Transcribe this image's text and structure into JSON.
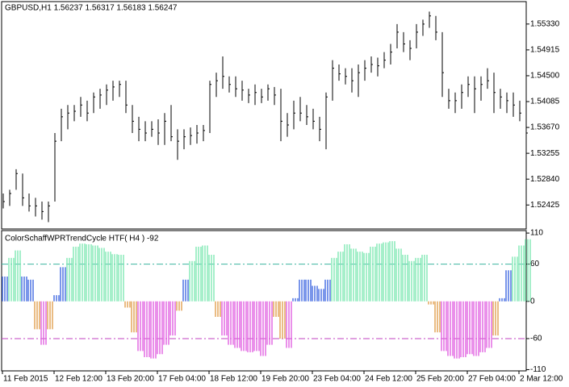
{
  "chart_data": [
    {
      "type": "ohlc",
      "title": "GBPUSD,H1  1.56237 1.56317 1.56183 1.56247",
      "color": "#000000",
      "x": [
        0,
        4,
        8,
        12,
        16,
        20,
        24,
        28,
        32,
        36,
        40,
        44,
        48,
        52,
        56,
        60,
        64,
        68,
        72,
        76,
        80,
        84,
        88,
        92,
        96,
        100,
        104,
        108,
        112,
        116,
        120,
        124,
        128,
        132,
        136,
        140,
        144,
        148,
        152,
        156,
        160,
        164,
        168,
        172,
        176,
        180,
        184,
        188,
        192,
        196,
        200,
        204,
        208,
        212,
        216,
        220,
        224,
        228,
        232,
        236,
        240,
        244,
        248,
        252,
        256,
        260,
        264,
        268,
        272,
        276,
        280,
        284,
        288,
        292,
        296,
        300,
        304,
        308,
        312,
        316,
        320,
        324
      ],
      "high": [
        1.5261,
        1.5267,
        1.53,
        1.5293,
        1.5261,
        1.5254,
        1.5248,
        1.5248,
        1.5358,
        1.5397,
        1.5403,
        1.5403,
        1.5416,
        1.541,
        1.5423,
        1.5429,
        1.5436,
        1.5442,
        1.5442,
        1.5442,
        1.5403,
        1.5384,
        1.5377,
        1.5377,
        1.538,
        1.539,
        1.5403,
        1.5364,
        1.5364,
        1.5367,
        1.5371,
        1.5371,
        1.5442,
        1.5455,
        1.5481,
        1.5449,
        1.5449,
        1.5442,
        1.5429,
        1.5436,
        1.5429,
        1.5436,
        1.5432,
        1.5429,
        1.539,
        1.541,
        1.5416,
        1.5403,
        1.5397,
        1.5384,
        1.5423,
        1.5475,
        1.5468,
        1.5462,
        1.5462,
        1.5468,
        1.5475,
        1.5481,
        1.5479,
        1.5488,
        1.5501,
        1.5533,
        1.552,
        1.5507,
        1.5533,
        1.554,
        1.5553,
        1.5546,
        1.552,
        1.5429,
        1.5423,
        1.5436,
        1.5449,
        1.5449,
        1.5449,
        1.5462,
        1.5455,
        1.5429,
        1.5423,
        1.5423,
        1.541,
        1.539
      ],
      "low": [
        1.5237,
        1.5241,
        1.5267,
        1.5241,
        1.5232,
        1.5224,
        1.5219,
        1.5215,
        1.5248,
        1.5345,
        1.5364,
        1.5377,
        1.5384,
        1.5377,
        1.539,
        1.5397,
        1.5403,
        1.541,
        1.5416,
        1.539,
        1.5358,
        1.5345,
        1.5345,
        1.5352,
        1.5339,
        1.5339,
        1.5345,
        1.5315,
        1.5332,
        1.5339,
        1.5341,
        1.5345,
        1.5358,
        1.5416,
        1.5429,
        1.5423,
        1.5416,
        1.541,
        1.5406,
        1.5403,
        1.5406,
        1.541,
        1.5403,
        1.5345,
        1.5352,
        1.5364,
        1.5377,
        1.5371,
        1.5364,
        1.5345,
        1.5332,
        1.541,
        1.5442,
        1.5436,
        1.5423,
        1.5416,
        1.5442,
        1.5455,
        1.5449,
        1.5462,
        1.5468,
        1.5494,
        1.5488,
        1.5475,
        1.5494,
        1.5514,
        1.5527,
        1.5507,
        1.5416,
        1.5397,
        1.539,
        1.5397,
        1.5416,
        1.539,
        1.541,
        1.5429,
        1.539,
        1.5397,
        1.539,
        1.5384,
        1.5377,
        1.5352
      ],
      "close": [
        1.5248,
        1.5261,
        1.5293,
        1.5254,
        1.5241,
        1.5241,
        1.5232,
        1.5241,
        1.5345,
        1.5384,
        1.539,
        1.5393,
        1.5403,
        1.539,
        1.5416,
        1.5419,
        1.5427,
        1.5432,
        1.5436,
        1.5403,
        1.5377,
        1.5364,
        1.5358,
        1.5364,
        1.5358,
        1.5377,
        1.5352,
        1.5345,
        1.5352,
        1.5354,
        1.5358,
        1.5362,
        1.5436,
        1.5442,
        1.5449,
        1.5436,
        1.5429,
        1.5427,
        1.5419,
        1.5423,
        1.5416,
        1.5429,
        1.5419,
        1.5377,
        1.5371,
        1.539,
        1.539,
        1.5384,
        1.5377,
        1.5364,
        1.5416,
        1.5462,
        1.5453,
        1.5449,
        1.5442,
        1.5455,
        1.5462,
        1.5468,
        1.5466,
        1.5475,
        1.5488,
        1.552,
        1.5501,
        1.5494,
        1.552,
        1.5533,
        1.5546,
        1.552,
        1.5455,
        1.541,
        1.541,
        1.5423,
        1.5436,
        1.5429,
        1.5436,
        1.5442,
        1.5423,
        1.5416,
        1.541,
        1.5403,
        1.539,
        1.5358
      ],
      "xlim": [
        0,
        324.5
      ],
      "ylim": [
        1.5569,
        1.5204
      ],
      "yticks": [
        {
          "value": 1.5533,
          "label": "1.55330"
        },
        {
          "value": 1.54915,
          "label": "1.54915"
        },
        {
          "value": 1.545,
          "label": "1.54500"
        },
        {
          "value": 1.54085,
          "label": "1.54085"
        },
        {
          "value": 1.5367,
          "label": "1.53670"
        },
        {
          "value": 1.53255,
          "label": "1.53255"
        },
        {
          "value": 1.5284,
          "label": "1.52840"
        },
        {
          "value": 1.52425,
          "label": "1.52425"
        }
      ]
    },
    {
      "type": "bar",
      "title": "ColorSchaffWPRTrendCycle HTF( H4 ) -92",
      "x": [
        0,
        4,
        8,
        12,
        16,
        20,
        24,
        28,
        32,
        36,
        40,
        44,
        48,
        52,
        56,
        60,
        64,
        68,
        72,
        76,
        80,
        84,
        88,
        92,
        96,
        100,
        104,
        108,
        112,
        116,
        120,
        124,
        128,
        132,
        136,
        140,
        144,
        148,
        152,
        156,
        160,
        164,
        168,
        172,
        176,
        180,
        184,
        188,
        192,
        196,
        200,
        204,
        208,
        212,
        216,
        220,
        224,
        228,
        232,
        236,
        240,
        244,
        248,
        252,
        256,
        260,
        264,
        268,
        272,
        276,
        280,
        284,
        288,
        292,
        296,
        300,
        304,
        308,
        312,
        316,
        320,
        324
      ],
      "values": [
        40,
        70,
        82,
        40,
        35,
        -45,
        -70,
        -45,
        10,
        55,
        70,
        88,
        93,
        92,
        90,
        86,
        80,
        76,
        75,
        -10,
        -50,
        -80,
        -90,
        -92,
        -85,
        -70,
        -55,
        -15,
        35,
        65,
        88,
        90,
        75,
        -25,
        -55,
        -70,
        -75,
        -80,
        -82,
        -80,
        -88,
        -70,
        -25,
        -60,
        -75,
        5,
        35,
        35,
        25,
        20,
        35,
        70,
        80,
        92,
        85,
        80,
        78,
        88,
        93,
        95,
        97,
        85,
        75,
        65,
        70,
        75,
        -5,
        -50,
        -80,
        -88,
        -92,
        -90,
        -85,
        -88,
        -82,
        -75,
        -55,
        5,
        50,
        72,
        90,
        100
      ],
      "colors": [
        "#4169e1",
        "#7fe8b4",
        "#7fe8b4",
        "#4169e1",
        "#4169e1",
        "#e0a050",
        "#e060e0",
        "#e0a050",
        "#4169e1",
        "#4169e1",
        "#7fe8b4",
        "#7fe8b4",
        "#7fe8b4",
        "#7fe8b4",
        "#7fe8b4",
        "#7fe8b4",
        "#7fe8b4",
        "#7fe8b4",
        "#7fe8b4",
        "#e0a050",
        "#e0a050",
        "#e060e0",
        "#e060e0",
        "#e060e0",
        "#e060e0",
        "#e060e0",
        "#e060e0",
        "#e0a050",
        "#4169e1",
        "#7fe8b4",
        "#7fe8b4",
        "#7fe8b4",
        "#7fe8b4",
        "#e0a050",
        "#e060e0",
        "#e060e0",
        "#e060e0",
        "#e060e0",
        "#e060e0",
        "#e060e0",
        "#e060e0",
        "#e060e0",
        "#e0a050",
        "#e0a050",
        "#e060e0",
        "#4169e1",
        "#4169e1",
        "#4169e1",
        "#4169e1",
        "#4169e1",
        "#4169e1",
        "#7fe8b4",
        "#7fe8b4",
        "#7fe8b4",
        "#7fe8b4",
        "#7fe8b4",
        "#7fe8b4",
        "#7fe8b4",
        "#7fe8b4",
        "#7fe8b4",
        "#7fe8b4",
        "#7fe8b4",
        "#7fe8b4",
        "#7fe8b4",
        "#7fe8b4",
        "#7fe8b4",
        "#e0a050",
        "#e0a050",
        "#e060e0",
        "#e060e0",
        "#e060e0",
        "#e060e0",
        "#e060e0",
        "#e060e0",
        "#e060e0",
        "#e060e0",
        "#e0a050",
        "#4169e1",
        "#4169e1",
        "#7fe8b4",
        "#7fe8b4",
        "#7fe8b4"
      ],
      "levels": [
        60,
        -60
      ],
      "level_colors": [
        "#3cb4a0",
        "#c040c0"
      ],
      "xlim": [
        0,
        324.5
      ],
      "ylim": [
        114,
        -112
      ],
      "yticks": [
        110,
        60,
        0,
        -60,
        -110
      ],
      "xticks": [
        {
          "value": 0,
          "label": "11 Feb 2015"
        },
        {
          "value": 32,
          "label": "12 Feb 12:00"
        },
        {
          "value": 64,
          "label": "13 Feb 20:00"
        },
        {
          "value": 96,
          "label": "17 Feb 04:00"
        },
        {
          "value": 128,
          "label": "18 Feb 12:00"
        },
        {
          "value": 160,
          "label": "19 Feb 20:00"
        },
        {
          "value": 192,
          "label": "23 Feb 04:00"
        },
        {
          "value": 224,
          "label": "24 Feb 12:00"
        },
        {
          "value": 256,
          "label": "25 Feb 20:00"
        },
        {
          "value": 288,
          "label": "27 Feb 04:00"
        },
        {
          "value": 320,
          "label": "2 Mar 12:00"
        }
      ]
    }
  ]
}
